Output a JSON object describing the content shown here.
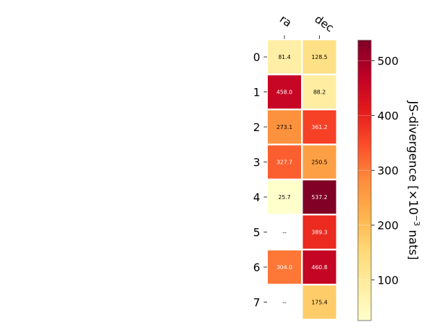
{
  "chart_data": {
    "type": "heatmap",
    "columns": [
      "ra",
      "dec"
    ],
    "rows": [
      "0",
      "1",
      "2",
      "3",
      "4",
      "5",
      "6",
      "7"
    ],
    "values": [
      [
        81.4,
        128.5
      ],
      [
        458.0,
        88.2
      ],
      [
        273.1,
        361.2
      ],
      [
        327.7,
        250.5
      ],
      [
        25.7,
        537.2
      ],
      [
        null,
        389.3
      ],
      [
        304.0,
        460.8
      ],
      [
        null,
        175.4
      ]
    ],
    "cell_labels": [
      [
        "81.4",
        "128.5"
      ],
      [
        "458.0",
        "88.2"
      ],
      [
        "273.1",
        "361.2"
      ],
      [
        "327.7",
        "250.5"
      ],
      [
        "25.7",
        "537.2"
      ],
      [
        "--",
        "389.3"
      ],
      [
        "304.0",
        "460.8"
      ],
      [
        "--",
        "175.4"
      ]
    ],
    "colormap": "YlOrRd",
    "colorbar": {
      "label_prefix": "JS-divergence [×10",
      "label_exponent": "−3",
      "label_suffix": " nats]",
      "range": [
        25.7,
        537.2
      ],
      "ticks": [
        "100",
        "200",
        "300",
        "400",
        "500"
      ],
      "tick_values": [
        100,
        200,
        300,
        400,
        500
      ]
    }
  }
}
